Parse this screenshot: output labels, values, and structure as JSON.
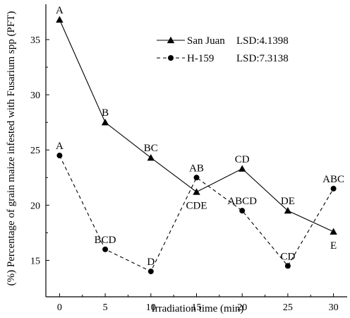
{
  "chart_data": {
    "type": "line",
    "xlabel": "Irradiation time   (min)",
    "ylabel": "(%) Percentage of grain maize infested with Fusarium spp (PFT)",
    "xlim": [
      -1.5,
      31.5
    ],
    "ylim": [
      11.7,
      38.2
    ],
    "x_ticks": [
      0,
      5,
      10,
      15,
      20,
      25,
      30
    ],
    "y_ticks": [
      15,
      20,
      25,
      30,
      35
    ],
    "grid": false,
    "legend_position": "top-right",
    "series": [
      {
        "name": "San Juan",
        "lsd_label": "LSD:4.1398",
        "marker": "triangle",
        "line_style": "solid",
        "x": [
          0,
          5,
          10,
          15,
          20,
          25,
          30
        ],
        "values": [
          36.8,
          27.5,
          24.3,
          21.2,
          23.3,
          19.5,
          17.6
        ],
        "labels": [
          "A",
          "B",
          "BC",
          "CDE",
          "CD",
          "DE",
          "E"
        ],
        "label_side": [
          "above",
          "above",
          "above",
          "below",
          "above",
          "above",
          "below"
        ]
      },
      {
        "name": "H-159",
        "lsd_label": "LSD:7.3138",
        "marker": "circle",
        "line_style": "dashed",
        "x": [
          0,
          5,
          10,
          15,
          20,
          25,
          30
        ],
        "values": [
          24.5,
          16.0,
          14.0,
          22.5,
          19.5,
          14.5,
          21.5
        ],
        "labels": [
          "A",
          "BCD",
          "D",
          "AB",
          "ABCD",
          "CD",
          "ABC"
        ],
        "label_side": [
          "above",
          "above",
          "above",
          "above",
          "above",
          "above",
          "above"
        ]
      }
    ]
  }
}
